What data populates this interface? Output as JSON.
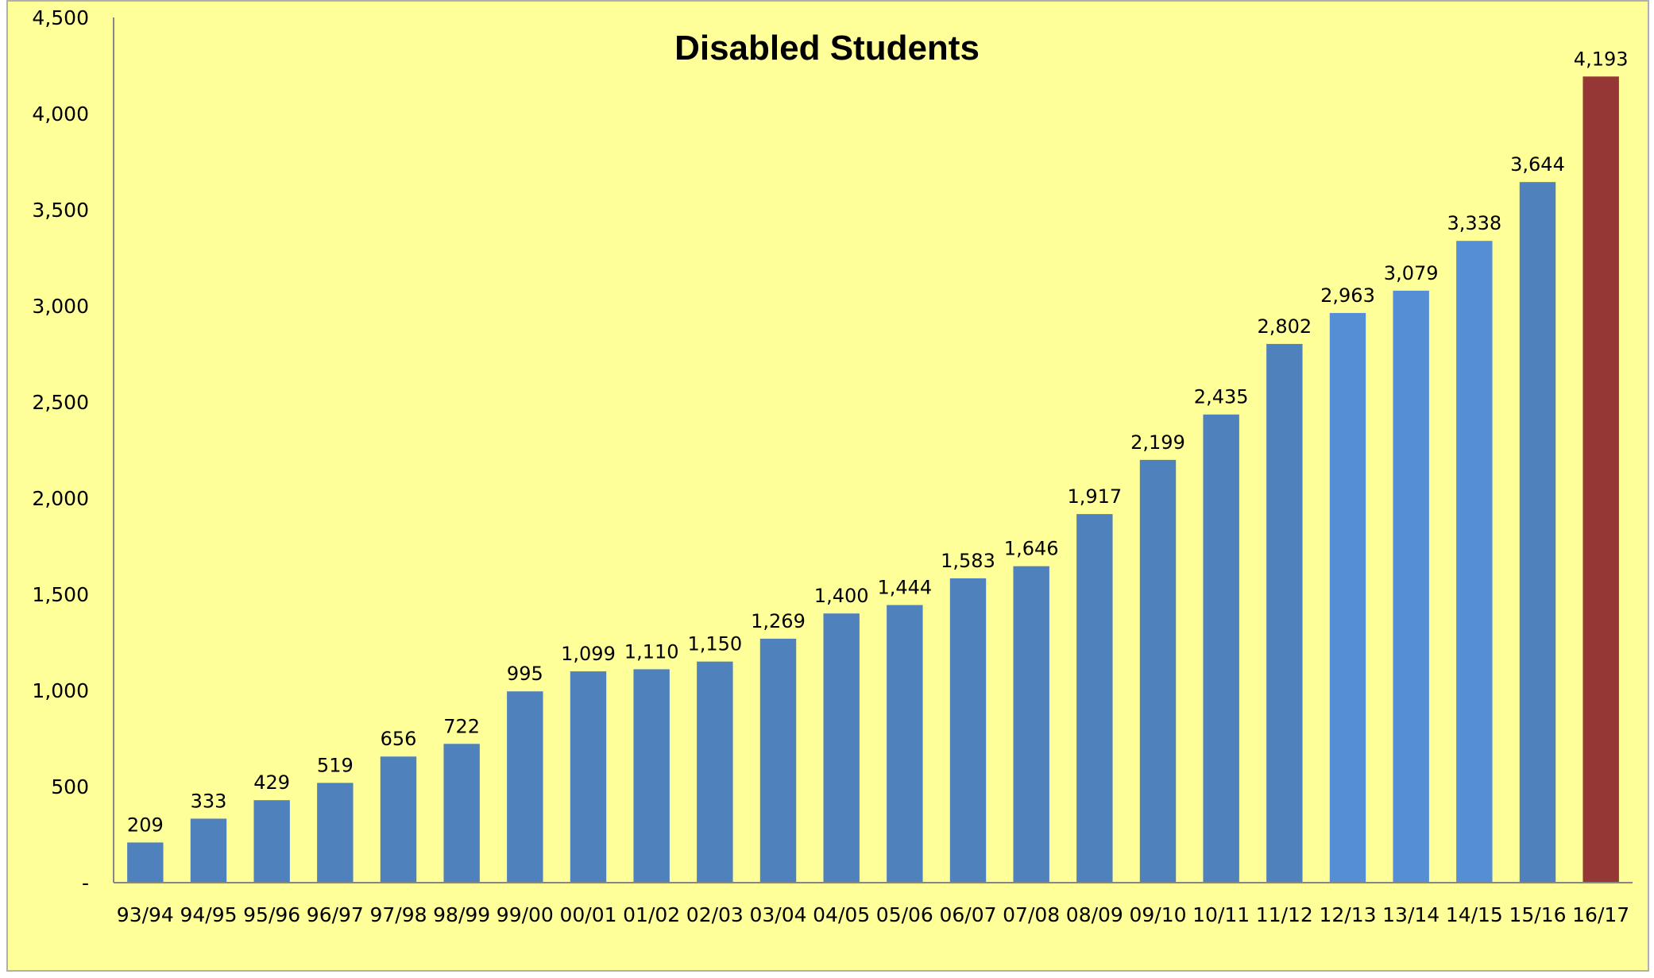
{
  "chart_data": {
    "type": "bar",
    "title": "Disabled Students",
    "xlabel": "",
    "ylabel": "",
    "ylim": [
      0,
      4500
    ],
    "yticks": [
      0,
      500,
      1000,
      1500,
      2000,
      2500,
      3000,
      3500,
      4000,
      4500
    ],
    "ytick_labels": [
      "-",
      "500",
      "1,000",
      "1,500",
      "2,000",
      "2,500",
      "3,000",
      "3,500",
      "4,000",
      "4,500"
    ],
    "grid": false,
    "legend": "none",
    "categories": [
      "93/94",
      "94/95",
      "95/96",
      "96/97",
      "97/98",
      "98/99",
      "99/00",
      "00/01",
      "01/02",
      "02/03",
      "03/04",
      "04/05",
      "05/06",
      "06/07",
      "07/08",
      "08/09",
      "09/10",
      "10/11",
      "11/12",
      "12/13",
      "13/14",
      "14/15",
      "15/16",
      "16/17"
    ],
    "values": [
      209,
      333,
      429,
      519,
      656,
      722,
      995,
      1099,
      1110,
      1150,
      1269,
      1400,
      1444,
      1583,
      1646,
      1917,
      2199,
      2435,
      2802,
      2963,
      3079,
      3338,
      3644,
      4193
    ],
    "data_labels": [
      "209",
      "333",
      "429",
      "519",
      "656",
      "722",
      "995",
      "1,099",
      "1,110",
      "1,150",
      "1,269",
      "1,400",
      "1,444",
      "1,583",
      "1,646",
      "1,917",
      "2,199",
      "2,435",
      "2,802",
      "2,963",
      "3,079",
      "3,338",
      "3,644",
      "4,193"
    ],
    "bar_colors": [
      "#4f81bd",
      "#4f81bd",
      "#4f81bd",
      "#4f81bd",
      "#4f81bd",
      "#4f81bd",
      "#4f81bd",
      "#4f81bd",
      "#4f81bd",
      "#4f81bd",
      "#4f81bd",
      "#4f81bd",
      "#4f81bd",
      "#4f81bd",
      "#4f81bd",
      "#4f81bd",
      "#4f81bd",
      "#4f81bd",
      "#4f81bd",
      "#558ed5",
      "#558ed5",
      "#558ed5",
      "#4f81bd",
      "#953735"
    ],
    "background_color": "#ffff99",
    "axis_color": "#868686"
  }
}
